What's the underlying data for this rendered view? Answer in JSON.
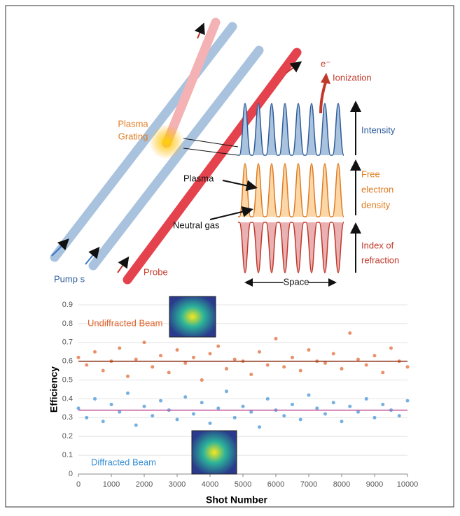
{
  "diagram": {
    "plasma_grating": [
      "Plasma",
      "Grating"
    ],
    "electron": "e⁻",
    "ionization": "Ionization",
    "intensity": "Intensity",
    "free_electron_density": [
      "Free",
      "electron",
      "density"
    ],
    "index_of_refraction": [
      "Index of",
      "refraction"
    ],
    "plasma": "Plasma",
    "neutral_gas": "Neutral gas",
    "pump": "Pump s",
    "probe": "Probe",
    "space": "Space"
  },
  "chart_data": {
    "type": "scatter",
    "x_label": "Shot Number",
    "y_label": "Efficiency",
    "annotations": [
      "Undiffracted Beam",
      "Diffracted Beam"
    ],
    "x": [
      0,
      250,
      500,
      750,
      1000,
      1250,
      1500,
      1750,
      2000,
      2250,
      2500,
      2750,
      3000,
      3250,
      3500,
      3750,
      4000,
      4250,
      4500,
      4750,
      5000,
      5250,
      5500,
      5750,
      6000,
      6250,
      6500,
      6750,
      7000,
      7250,
      7500,
      7750,
      8000,
      8250,
      8500,
      8750,
      9000,
      9250,
      9500,
      9750,
      10000
    ],
    "series": [
      {
        "color": "#e0622a",
        "mean": 0.6,
        "values": [
          0.62,
          0.58,
          0.65,
          0.55,
          0.6,
          0.67,
          0.52,
          0.61,
          0.7,
          0.57,
          0.63,
          0.54,
          0.66,
          0.59,
          0.62,
          0.5,
          0.64,
          0.68,
          0.56,
          0.61,
          0.6,
          0.53,
          0.65,
          0.58,
          0.72,
          0.57,
          0.62,
          0.55,
          0.66,
          0.6,
          0.59,
          0.64,
          0.56,
          0.75,
          0.61,
          0.58,
          0.63,
          0.54,
          0.67,
          0.6,
          0.57
        ]
      },
      {
        "color": "#3a8fd4",
        "mean": 0.34,
        "values": [
          0.35,
          0.3,
          0.4,
          0.28,
          0.37,
          0.33,
          0.43,
          0.26,
          0.36,
          0.31,
          0.39,
          0.34,
          0.29,
          0.41,
          0.32,
          0.38,
          0.27,
          0.35,
          0.44,
          0.3,
          0.36,
          0.33,
          0.25,
          0.4,
          0.34,
          0.31,
          0.37,
          0.29,
          0.42,
          0.35,
          0.32,
          0.38,
          0.28,
          0.36,
          0.33,
          0.4,
          0.3,
          0.37,
          0.34,
          0.31,
          0.39
        ]
      }
    ],
    "xlim": [
      0,
      10000
    ],
    "xticks": [
      0,
      1000,
      2000,
      3000,
      4000,
      5000,
      6000,
      7000,
      8000,
      9000,
      10000
    ],
    "ylim": [
      0,
      0.9
    ],
    "yticks": [
      0,
      0.1,
      0.2,
      0.3,
      0.4,
      0.5,
      0.6,
      0.7,
      0.8,
      0.9
    ],
    "grid": true
  }
}
